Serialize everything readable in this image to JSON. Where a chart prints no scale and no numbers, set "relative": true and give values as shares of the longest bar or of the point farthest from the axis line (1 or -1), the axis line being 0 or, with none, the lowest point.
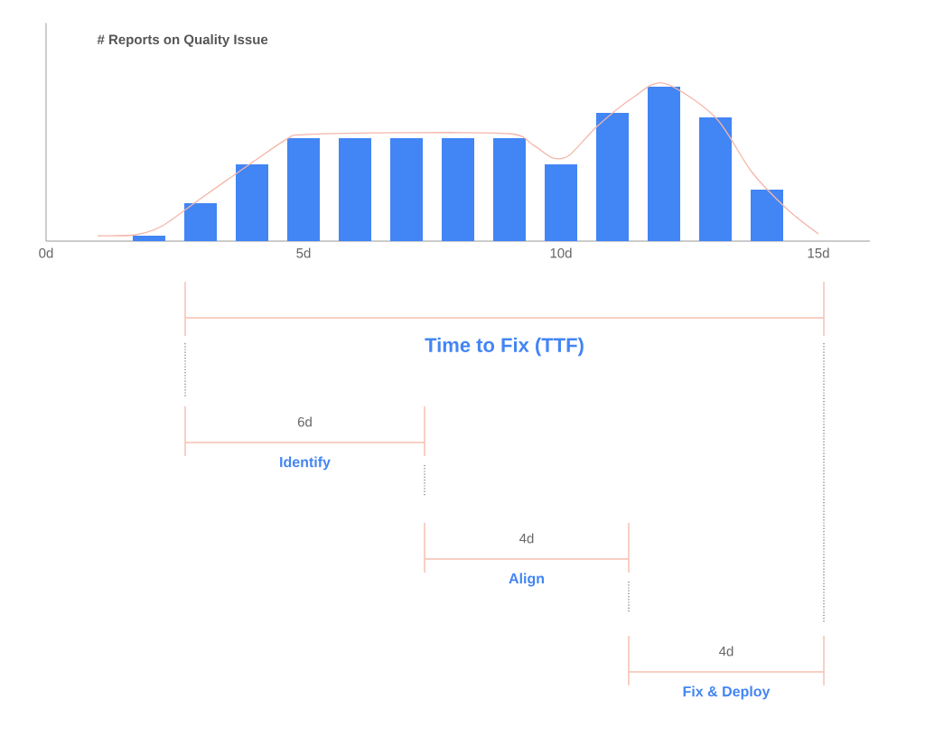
{
  "chart_data": {
    "type": "bar",
    "title": "# Reports on Quality Issue",
    "relative": true,
    "grid": false,
    "x": [
      2,
      3,
      4,
      5,
      6,
      7,
      8,
      9,
      10,
      11,
      12,
      13,
      14
    ],
    "xlim": [
      0,
      16
    ],
    "xticks": [
      {
        "value": 0,
        "label": "0d"
      },
      {
        "value": 5,
        "label": "5d"
      },
      {
        "value": 10,
        "label": "10d"
      },
      {
        "value": 15,
        "label": "15d"
      }
    ],
    "series": [
      {
        "color": "#4285f4",
        "values": [
          0.034,
          0.24,
          0.486,
          0.651,
          0.651,
          0.651,
          0.651,
          0.651,
          0.486,
          0.811,
          0.977,
          0.783,
          0.326
        ]
      },
      {
        "type": "line",
        "color": "#f4b6a8",
        "x": [
          1.0,
          1.74,
          2.26,
          3.0,
          4.0,
          4.7,
          5.0,
          7.0,
          9.0,
          9.45,
          9.84,
          10.16,
          10.7,
          11.4,
          12.0,
          13.0,
          13.7,
          14.4,
          15.0
        ],
        "values": [
          0.034,
          0.04,
          0.097,
          0.269,
          0.497,
          0.651,
          0.674,
          0.686,
          0.68,
          0.611,
          0.526,
          0.543,
          0.726,
          0.909,
          1.0,
          0.783,
          0.44,
          0.2,
          0.046
        ]
      }
    ],
    "annotations": [
      "Time to Fix (TTF)",
      "6d",
      "Identify",
      "4d",
      "Align",
      "4d",
      "Fix & Deploy"
    ]
  }
}
